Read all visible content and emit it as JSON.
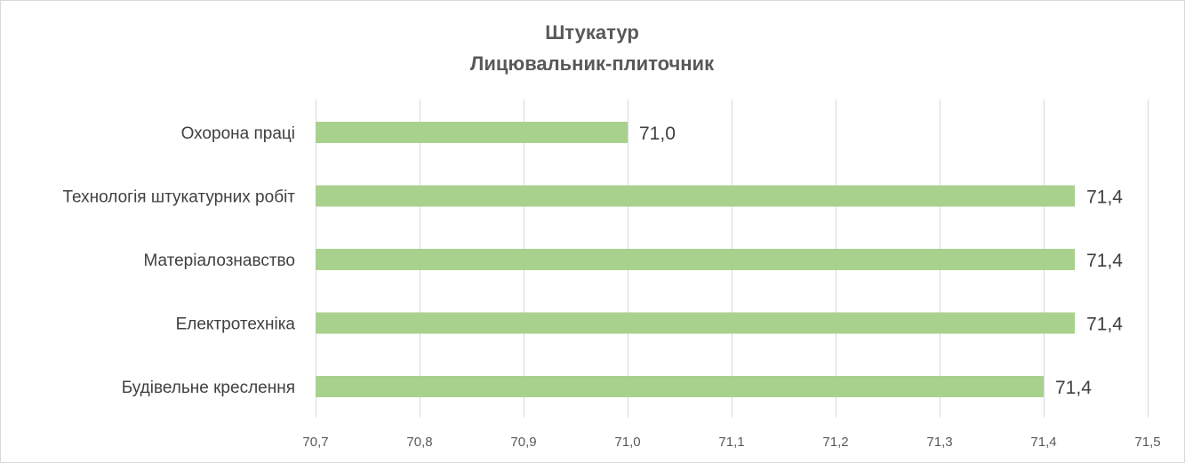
{
  "chart_data": {
    "type": "bar",
    "orientation": "horizontal",
    "title_lines": [
      "Штукатур",
      "Лицювальник-плиточник"
    ],
    "categories": [
      "Охорона праці",
      "Технологія штукатурних  робіт",
      "Матеріалознавство",
      "Електротехніка",
      "Будівельне креслення"
    ],
    "values": [
      71.0,
      71.43,
      71.43,
      71.43,
      71.4
    ],
    "value_labels": [
      "71,0",
      "71,4",
      "71,4",
      "71,4",
      "71,4"
    ],
    "xlim": [
      70.7,
      71.5
    ],
    "xticks": [
      70.7,
      70.8,
      70.9,
      71.0,
      71.1,
      71.2,
      71.3,
      71.4,
      71.5
    ],
    "xtick_labels": [
      "70,7",
      "70,8",
      "70,9",
      "71,0",
      "71,1",
      "71,2",
      "71,3",
      "71,4",
      "71,5"
    ],
    "bar_color": "#a9d18e",
    "grid": true,
    "legend": "none",
    "xlabel": "",
    "ylabel": ""
  }
}
